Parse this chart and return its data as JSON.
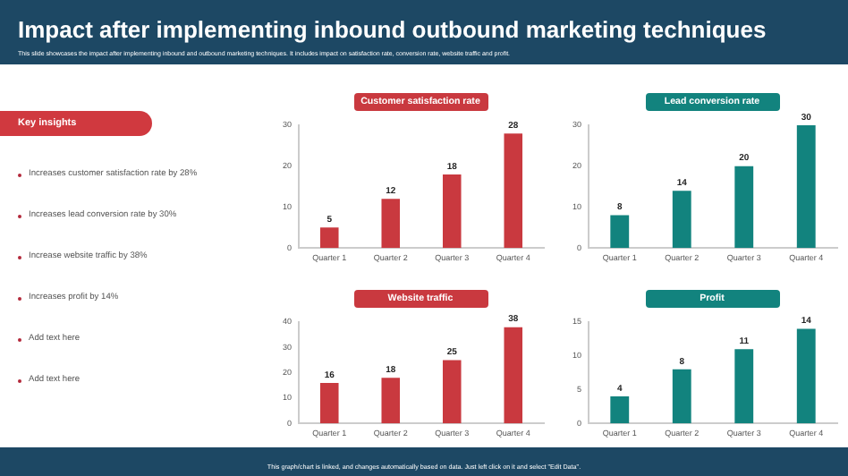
{
  "chart_data": [
    {
      "type": "other",
      "title": "Impact after implementing inbound outbound marketing techniques",
      "subtitle": "This slide showcases the impact after implementing inbound and outbound marketing techniques. It includes impact on satisfaction rate, conversion rate, website traffic and profit.",
      "legend_title": "Key insights",
      "annotations": [
        "Increases customer satisfaction rate by 28%",
        "Increases lead conversion rate by 30%",
        "Increase website traffic by 38%",
        "Increases profit by 14%",
        "Add text here",
        "Add text here",
        "This graph/chart is linked, and changes automatically based on data. Just left click on it and select \"Edit Data\"."
      ]
    },
    {
      "type": "bar",
      "title": "Customer satisfaction rate",
      "categories": [
        "Quarter 1",
        "Quarter 2",
        "Quarter 3",
        "Quarter 4"
      ],
      "values": [
        5,
        12,
        18,
        28
      ],
      "color": "#c9393f",
      "ylim": [
        0,
        30
      ],
      "yticks": [
        0,
        10,
        20,
        30
      ],
      "data_labels": true,
      "grid": false,
      "legend": false
    },
    {
      "type": "bar",
      "title": "Lead conversion rate",
      "categories": [
        "Quarter 1",
        "Quarter 2",
        "Quarter 3",
        "Quarter 4"
      ],
      "values": [
        8,
        14,
        20,
        30
      ],
      "color": "#12837e",
      "ylim": [
        0,
        30
      ],
      "yticks": [
        0,
        10,
        20,
        30
      ],
      "data_labels": true,
      "grid": false,
      "legend": false
    },
    {
      "type": "bar",
      "title": "Website traffic",
      "categories": [
        "Quarter 1",
        "Quarter 2",
        "Quarter 3",
        "Quarter 4"
      ],
      "values": [
        16,
        18,
        25,
        38
      ],
      "color": "#c9393f",
      "ylim": [
        0,
        40
      ],
      "yticks": [
        0,
        10,
        20,
        30,
        40
      ],
      "data_labels": true,
      "grid": false,
      "legend": false
    },
    {
      "type": "bar",
      "title": "Profit",
      "categories": [
        "Quarter 1",
        "Quarter 2",
        "Quarter 3",
        "Quarter 4"
      ],
      "values": [
        4,
        8,
        11,
        14
      ],
      "color": "#12837e",
      "ylim": [
        0,
        15
      ],
      "yticks": [
        0,
        5,
        10,
        15
      ],
      "data_labels": true,
      "grid": false,
      "legend": false
    }
  ]
}
